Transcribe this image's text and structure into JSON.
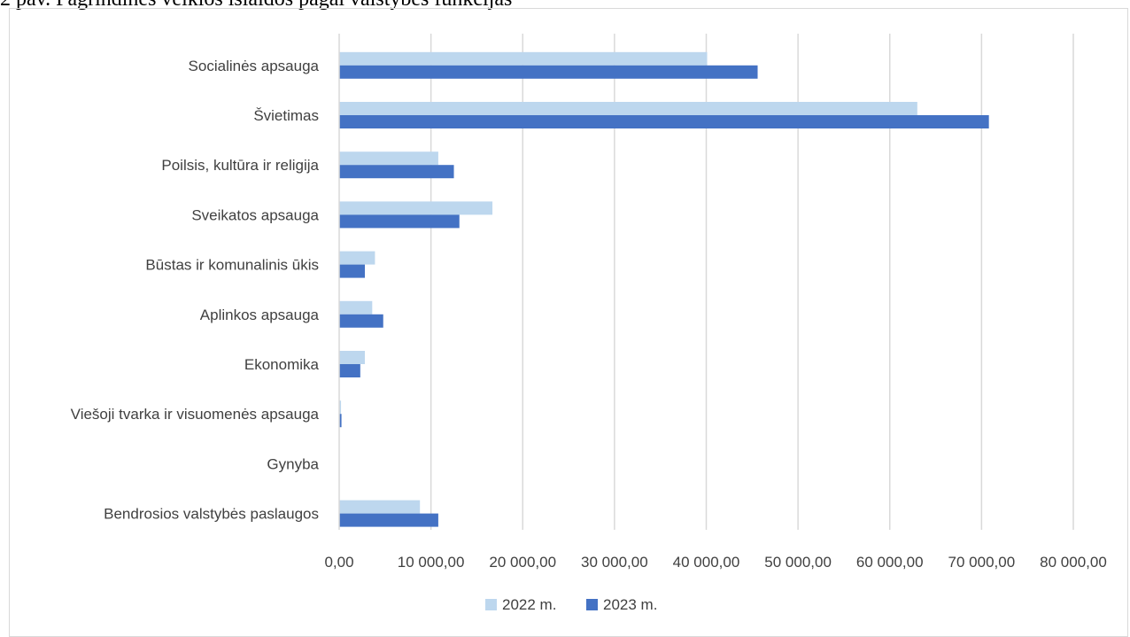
{
  "caption": "2 pav. Pagrindinės veiklos išlaidos pagal valstybės funkcijas",
  "chart_data": {
    "type": "bar",
    "orientation": "horizontal",
    "title": "",
    "xlabel": "",
    "ylabel": "",
    "categories": [
      "Socialinės apsauga",
      "Švietimas",
      "Poilsis, kultūra ir religija",
      "Sveikatos apsauga",
      "Būstas ir komunalinis ūkis",
      "Aplinkos apsauga",
      "Ekonomika",
      "Viešoji tvarka ir visuomenės apsauga",
      "Gynyba",
      "Bendrosios valstybės paslaugos"
    ],
    "series": [
      {
        "name": "2022 m.",
        "color": "#bdd7ee",
        "values": [
          40100,
          63000,
          10800,
          16700,
          3900,
          3600,
          2800,
          200,
          0,
          8800
        ]
      },
      {
        "name": "2023 m.",
        "color": "#4472c4",
        "values": [
          45600,
          70800,
          12500,
          13100,
          2800,
          4800,
          2300,
          250,
          0,
          10800
        ]
      }
    ],
    "xlim": [
      0,
      80000
    ],
    "xticks": [
      0,
      10000,
      20000,
      30000,
      40000,
      50000,
      60000,
      70000,
      80000
    ],
    "xtick_labels": [
      "0,00",
      "10 000,00",
      "20 000,00",
      "30 000,00",
      "40 000,00",
      "50 000,00",
      "60 000,00",
      "70 000,00",
      "80 000,00"
    ],
    "grid": "vertical",
    "legend": "bottom",
    "gridline_color": "#d9d9d9",
    "label_color": "#404040"
  }
}
